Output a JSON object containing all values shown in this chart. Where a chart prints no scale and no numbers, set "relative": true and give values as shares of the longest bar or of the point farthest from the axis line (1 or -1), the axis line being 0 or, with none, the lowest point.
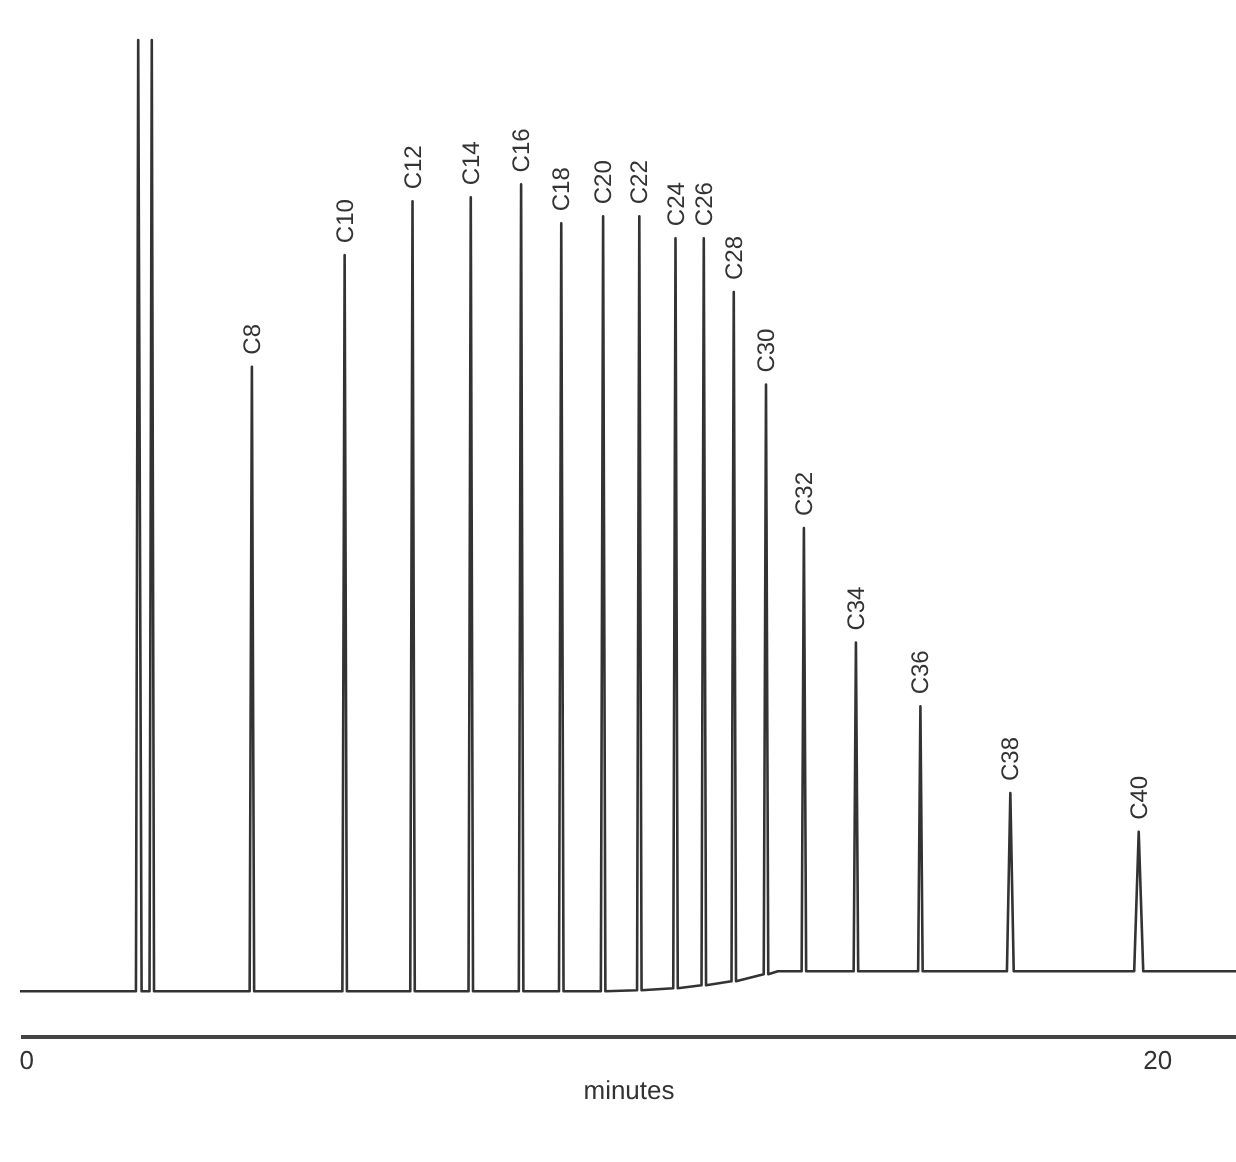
{
  "chart_data": {
    "type": "line",
    "relative": true,
    "xlabel": "minutes",
    "xlim": [
      -0.1,
      21.4
    ],
    "xticks": [
      0,
      20
    ],
    "series": [
      {
        "color": "#333333",
        "x": [
          -0.1,
          1.95,
          1.99,
          2.05,
          2.19,
          2.23,
          2.27,
          3.96,
          4.0,
          4.04,
          5.6,
          5.64,
          5.68,
          6.8,
          6.84,
          6.88,
          7.83,
          7.87,
          7.91,
          8.72,
          8.76,
          8.8,
          9.43,
          9.47,
          9.51,
          10.17,
          10.21,
          10.25,
          10.81,
          10.85,
          10.89,
          11.45,
          11.49,
          11.53,
          11.95,
          11.99,
          12.03,
          12.48,
          12.52,
          12.56,
          13.05,
          13.09,
          13.13,
          13.3,
          13.72,
          13.76,
          13.8,
          14.64,
          14.68,
          14.72,
          15.78,
          15.82,
          15.86,
          17.35,
          17.41,
          17.47,
          19.6,
          19.68,
          19.76,
          21.4
        ],
        "values": [
          0.045,
          0.045,
          1.0,
          0.045,
          0.045,
          1.0,
          0.045,
          0.045,
          0.672,
          0.045,
          0.045,
          0.784,
          0.045,
          0.045,
          0.838,
          0.045,
          0.045,
          0.842,
          0.045,
          0.045,
          0.855,
          0.045,
          0.045,
          0.816,
          0.045,
          0.045,
          0.823,
          0.045,
          0.046,
          0.823,
          0.046,
          0.048,
          0.801,
          0.048,
          0.051,
          0.801,
          0.051,
          0.055,
          0.747,
          0.055,
          0.062,
          0.654,
          0.062,
          0.065,
          0.065,
          0.51,
          0.065,
          0.065,
          0.395,
          0.065,
          0.065,
          0.331,
          0.065,
          0.065,
          0.244,
          0.065,
          0.065,
          0.205,
          0.065,
          0.065
        ]
      }
    ],
    "annotations": [
      {
        "text": "C8",
        "x": 4.0,
        "y": 0.672
      },
      {
        "text": "C10",
        "x": 5.64,
        "y": 0.784
      },
      {
        "text": "C12",
        "x": 6.84,
        "y": 0.838
      },
      {
        "text": "C14",
        "x": 7.87,
        "y": 0.842
      },
      {
        "text": "C16",
        "x": 8.76,
        "y": 0.855
      },
      {
        "text": "C18",
        "x": 9.47,
        "y": 0.816
      },
      {
        "text": "C20",
        "x": 10.21,
        "y": 0.823
      },
      {
        "text": "C22",
        "x": 10.85,
        "y": 0.823
      },
      {
        "text": "C24",
        "x": 11.49,
        "y": 0.801
      },
      {
        "text": "C26",
        "x": 11.99,
        "y": 0.801
      },
      {
        "text": "C28",
        "x": 12.52,
        "y": 0.747
      },
      {
        "text": "C30",
        "x": 13.09,
        "y": 0.654
      },
      {
        "text": "C32",
        "x": 13.76,
        "y": 0.51
      },
      {
        "text": "C34",
        "x": 14.68,
        "y": 0.395
      },
      {
        "text": "C36",
        "x": 15.82,
        "y": 0.331
      },
      {
        "text": "C38",
        "x": 17.41,
        "y": 0.244
      },
      {
        "text": "C40",
        "x": 19.68,
        "y": 0.205
      }
    ]
  }
}
